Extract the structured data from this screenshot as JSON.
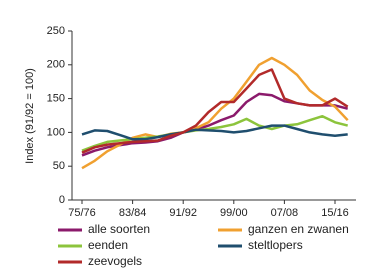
{
  "chart_data": {
    "type": "line",
    "y_label": "Index (91/92 = 100)",
    "categories": [
      "75/76",
      null,
      null,
      null,
      "83/84",
      null,
      null,
      null,
      "91/92",
      null,
      null,
      null,
      "99/00",
      null,
      null,
      null,
      "07/08",
      null,
      null,
      null,
      "15/16",
      null
    ],
    "ylim": [
      0,
      250
    ],
    "yticks": [
      0,
      50,
      100,
      150,
      200,
      250
    ],
    "series": [
      {
        "name": "alle soorten",
        "color": "#8b1a6b",
        "values": [
          66,
          73,
          78,
          81,
          84,
          85,
          87,
          92,
          100,
          104,
          110,
          118,
          125,
          145,
          157,
          155,
          146,
          143,
          140,
          140,
          140,
          135
        ]
      },
      {
        "name": "ganzen en zwanen",
        "color": "#f0a030",
        "values": [
          47,
          58,
          72,
          82,
          92,
          97,
          93,
          98,
          100,
          106,
          115,
          135,
          150,
          175,
          200,
          210,
          200,
          185,
          162,
          148,
          138,
          118
        ]
      },
      {
        "name": "eenden",
        "color": "#8cc43c",
        "values": [
          73,
          80,
          86,
          88,
          90,
          92,
          94,
          97,
          100,
          103,
          105,
          108,
          112,
          120,
          110,
          105,
          110,
          112,
          118,
          124,
          115,
          110
        ]
      },
      {
        "name": "steltlopers",
        "color": "#1f4e6e",
        "values": [
          97,
          103,
          102,
          96,
          90,
          90,
          93,
          97,
          100,
          104,
          103,
          102,
          100,
          102,
          106,
          110,
          110,
          105,
          100,
          97,
          95,
          97
        ]
      },
      {
        "name": "zeevogels",
        "color": "#b22a2a",
        "values": [
          70,
          78,
          82,
          84,
          86,
          87,
          88,
          95,
          100,
          110,
          130,
          145,
          145,
          165,
          185,
          193,
          150,
          143,
          140,
          140,
          150,
          138
        ]
      }
    ]
  }
}
